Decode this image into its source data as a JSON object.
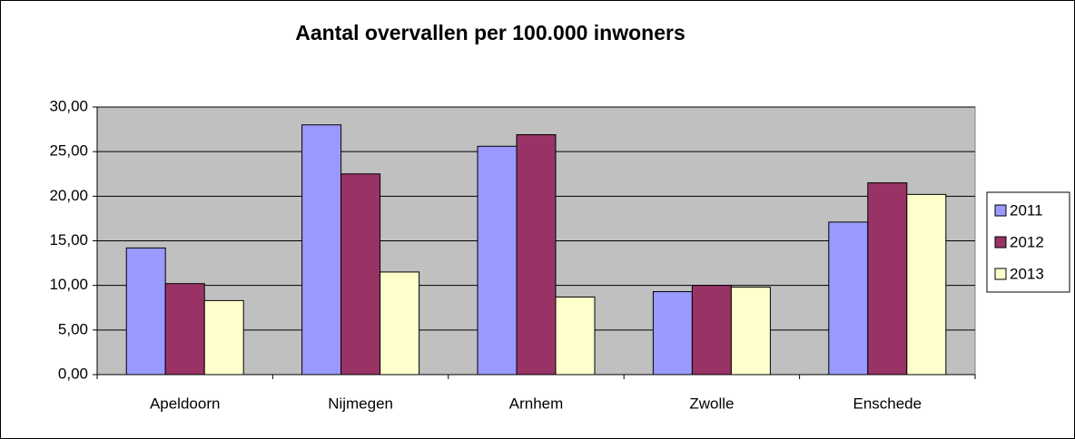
{
  "chart_data": {
    "type": "bar",
    "title": "Aantal overvallen per 100.000 inwoners",
    "categories": [
      "Apeldoorn",
      "Nijmegen",
      "Arnhem",
      "Zwolle",
      "Enschede"
    ],
    "series": [
      {
        "name": "2011",
        "color": "#9999ff",
        "values": [
          14.2,
          28.0,
          25.6,
          9.3,
          17.1
        ]
      },
      {
        "name": "2012",
        "color": "#993366",
        "values": [
          10.2,
          22.5,
          26.9,
          10.0,
          21.5
        ]
      },
      {
        "name": "2013",
        "color": "#ffffcc",
        "values": [
          8.3,
          11.5,
          8.7,
          9.8,
          20.2
        ]
      }
    ],
    "ylim": [
      0,
      30
    ],
    "yticks": [
      {
        "value": 0,
        "label": "0,00"
      },
      {
        "value": 5,
        "label": "5,00"
      },
      {
        "value": 10,
        "label": "10,00"
      },
      {
        "value": 15,
        "label": "15,00"
      },
      {
        "value": 20,
        "label": "20,00"
      },
      {
        "value": 25,
        "label": "25,00"
      },
      {
        "value": 30,
        "label": "30,00"
      }
    ],
    "grid": true,
    "legend": "right"
  }
}
